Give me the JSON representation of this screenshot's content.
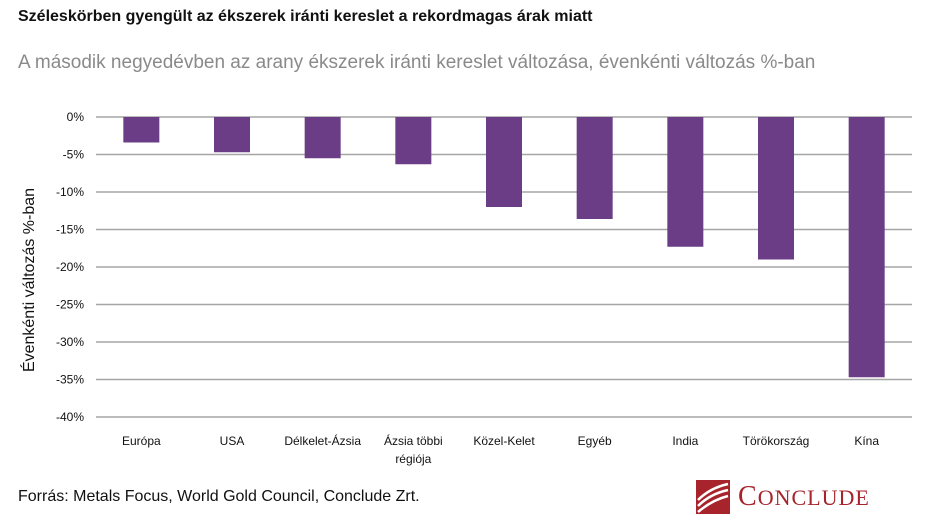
{
  "title": "Széleskörben gyengült az ékszerek iránti kereslet a rekordmagas árak miatt",
  "subtitle": "A második negyedévben az arany ékszerek iránti kereslet változása, évenkénti változás %-ban",
  "source": "Forrás: Metals Focus, World Gold Council, Conclude Zrt.",
  "logo": {
    "first": "C",
    "rest": "ONCLUDE"
  },
  "colors": {
    "bar": "#6b3d86",
    "grid": "#a6a6a6",
    "brand": "#a8242c"
  },
  "chart_data": {
    "type": "bar",
    "ylabel": "Évenkénti változás %-ban",
    "categories": [
      "Európa",
      "USA",
      "Délkelet-Ázsia",
      "Ázsia többi régiója",
      "Közel-Kelet",
      "Egyéb",
      "India",
      "Törökország",
      "Kína"
    ],
    "category_lines": [
      [
        "Európa"
      ],
      [
        "USA"
      ],
      [
        "Délkelet-Ázsia"
      ],
      [
        "Ázsia többi",
        "régiója"
      ],
      [
        "Közel-Kelet"
      ],
      [
        "Egyéb"
      ],
      [
        "India"
      ],
      [
        "Törökország"
      ],
      [
        "Kína"
      ]
    ],
    "values": [
      -3.4,
      -4.7,
      -5.5,
      -6.3,
      -12.0,
      -13.6,
      -17.3,
      -19.0,
      -34.7
    ],
    "ylim": [
      -40,
      0
    ],
    "yticks": [
      0,
      -5,
      -10,
      -15,
      -20,
      -25,
      -30,
      -35,
      -40
    ],
    "ytick_labels": [
      "0%",
      "-5%",
      "-10%",
      "-15%",
      "-20%",
      "-25%",
      "-30%",
      "-35%",
      "-40%"
    ],
    "grid": true,
    "legend": false
  }
}
